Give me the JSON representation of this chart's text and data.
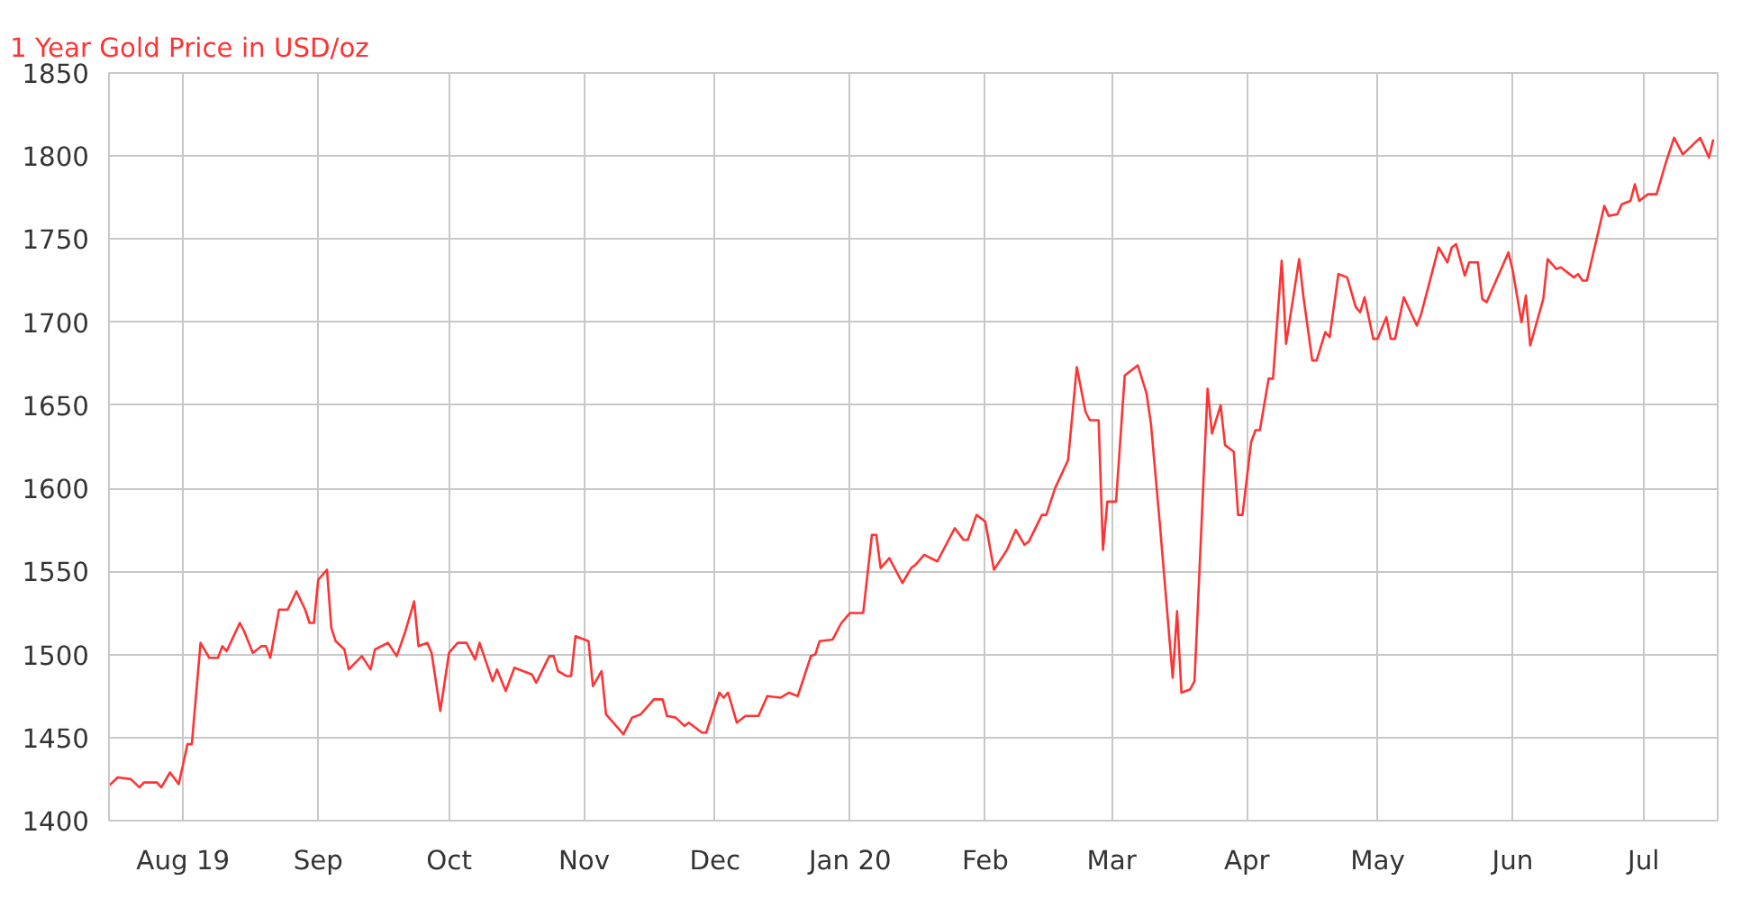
{
  "chart_data": {
    "type": "line",
    "title": "1 Year Gold Price in USD/oz",
    "xlim": [
      "2019-07-15",
      "2020-07-18"
    ],
    "xticks": [
      {
        "value": "2019-08-01",
        "label": "Aug 19"
      },
      {
        "value": "2019-09-01",
        "label": "Sep"
      },
      {
        "value": "2019-10-01",
        "label": "Oct"
      },
      {
        "value": "2019-11-01",
        "label": "Nov"
      },
      {
        "value": "2019-12-01",
        "label": "Dec"
      },
      {
        "value": "2020-01-01",
        "label": "Jan 20"
      },
      {
        "value": "2020-02-01",
        "label": "Feb"
      },
      {
        "value": "2020-03-01",
        "label": "Mar"
      },
      {
        "value": "2020-04-01",
        "label": "Apr"
      },
      {
        "value": "2020-05-01",
        "label": "May"
      },
      {
        "value": "2020-06-01",
        "label": "Jun"
      },
      {
        "value": "2020-07-01",
        "label": "Jul"
      }
    ],
    "ylim": [
      1400,
      1850
    ],
    "yticks": [
      1400,
      1450,
      1500,
      1550,
      1600,
      1650,
      1700,
      1750,
      1800,
      1850
    ],
    "grid": true,
    "marker": "none",
    "line_style": "solid",
    "x": [
      "2019-07-15",
      "2019-07-17",
      "2019-07-20",
      "2019-07-22",
      "2019-07-23",
      "2019-07-26",
      "2019-07-27",
      "2019-07-29",
      "2019-07-31",
      "2019-08-02",
      "2019-08-03",
      "2019-08-05",
      "2019-08-07",
      "2019-08-09",
      "2019-08-10",
      "2019-08-11",
      "2019-08-14",
      "2019-08-15",
      "2019-08-17",
      "2019-08-19",
      "2019-08-20",
      "2019-08-21",
      "2019-08-23",
      "2019-08-25",
      "2019-08-27",
      "2019-08-29",
      "2019-08-30",
      "2019-08-31",
      "2019-09-01",
      "2019-09-03",
      "2019-09-04",
      "2019-09-05",
      "2019-09-07",
      "2019-09-08",
      "2019-09-11",
      "2019-09-13",
      "2019-09-14",
      "2019-09-17",
      "2019-09-19",
      "2019-09-21",
      "2019-09-23",
      "2019-09-24",
      "2019-09-26",
      "2019-09-27",
      "2019-09-29",
      "2019-10-01",
      "2019-10-03",
      "2019-10-05",
      "2019-10-07",
      "2019-10-08",
      "2019-10-11",
      "2019-10-12",
      "2019-10-14",
      "2019-10-16",
      "2019-10-20",
      "2019-10-21",
      "2019-10-24",
      "2019-10-25",
      "2019-10-26",
      "2019-10-28",
      "2019-10-29",
      "2019-10-30",
      "2019-11-02",
      "2019-11-03",
      "2019-11-05",
      "2019-11-06",
      "2019-11-10",
      "2019-11-12",
      "2019-11-14",
      "2019-11-17",
      "2019-11-19",
      "2019-11-20",
      "2019-11-22",
      "2019-11-24",
      "2019-11-25",
      "2019-11-28",
      "2019-11-29",
      "2019-12-02",
      "2019-12-03",
      "2019-12-04",
      "2019-12-06",
      "2019-12-08",
      "2019-12-11",
      "2019-12-13",
      "2019-12-16",
      "2019-12-18",
      "2019-12-20",
      "2019-12-23",
      "2019-12-24",
      "2019-12-25",
      "2019-12-28",
      "2019-12-30",
      "2020-01-01",
      "2020-01-04",
      "2020-01-06",
      "2020-01-07",
      "2020-01-08",
      "2020-01-10",
      "2020-01-13",
      "2020-01-15",
      "2020-01-16",
      "2020-01-18",
      "2020-01-21",
      "2020-01-25",
      "2020-01-27",
      "2020-01-28",
      "2020-01-30",
      "2020-02-01",
      "2020-02-03",
      "2020-02-06",
      "2020-02-08",
      "2020-02-10",
      "2020-02-11",
      "2020-02-14",
      "2020-02-15",
      "2020-02-17",
      "2020-02-20",
      "2020-02-22",
      "2020-02-24",
      "2020-02-25",
      "2020-02-27",
      "2020-02-28",
      "2020-02-29",
      "2020-03-02",
      "2020-03-04",
      "2020-03-07",
      "2020-03-09",
      "2020-03-10",
      "2020-03-12",
      "2020-03-15",
      "2020-03-16",
      "2020-03-17",
      "2020-03-19",
      "2020-03-20",
      "2020-03-23",
      "2020-03-24",
      "2020-03-26",
      "2020-03-27",
      "2020-03-29",
      "2020-03-30",
      "2020-03-31",
      "2020-04-02",
      "2020-04-03",
      "2020-04-04",
      "2020-04-06",
      "2020-04-07",
      "2020-04-09",
      "2020-04-10",
      "2020-04-13",
      "2020-04-14",
      "2020-04-16",
      "2020-04-17",
      "2020-04-19",
      "2020-04-20",
      "2020-04-22",
      "2020-04-24",
      "2020-04-26",
      "2020-04-27",
      "2020-04-28",
      "2020-04-30",
      "2020-05-01",
      "2020-05-03",
      "2020-05-04",
      "2020-05-05",
      "2020-05-07",
      "2020-05-10",
      "2020-05-11",
      "2020-05-15",
      "2020-05-17",
      "2020-05-18",
      "2020-05-19",
      "2020-05-21",
      "2020-05-22",
      "2020-05-24",
      "2020-05-25",
      "2020-05-26",
      "2020-05-31",
      "2020-06-01",
      "2020-06-03",
      "2020-06-04",
      "2020-06-05",
      "2020-06-08",
      "2020-06-09",
      "2020-06-11",
      "2020-06-12",
      "2020-06-15",
      "2020-06-16",
      "2020-06-17",
      "2020-06-18",
      "2020-06-22",
      "2020-06-23",
      "2020-06-25",
      "2020-06-26",
      "2020-06-28",
      "2020-06-29",
      "2020-06-30",
      "2020-07-02",
      "2020-07-04",
      "2020-07-06",
      "2020-07-08",
      "2020-07-10",
      "2020-07-14",
      "2020-07-16",
      "2020-07-17"
    ],
    "series": [
      {
        "color": "#ff3333",
        "values": [
          1421,
          1426,
          1425,
          1420,
          1423,
          1423,
          1420,
          1429,
          1422,
          1446,
          1446,
          1507,
          1498,
          1498,
          1505,
          1502,
          1519,
          1514,
          1501,
          1505,
          1505,
          1498,
          1527,
          1527,
          1538,
          1527,
          1519,
          1519,
          1545,
          1551,
          1516,
          1508,
          1503,
          1491,
          1499,
          1491,
          1503,
          1507,
          1499,
          1514,
          1532,
          1505,
          1507,
          1501,
          1466,
          1501,
          1507,
          1507,
          1497,
          1507,
          1484,
          1491,
          1478,
          1492,
          1488,
          1483,
          1499,
          1499,
          1490,
          1487,
          1487,
          1511,
          1508,
          1481,
          1490,
          1464,
          1452,
          1462,
          1464,
          1473,
          1473,
          1463,
          1462,
          1457,
          1459,
          1453,
          1453,
          1477,
          1474,
          1477,
          1459,
          1463,
          1463,
          1475,
          1474,
          1477,
          1475,
          1499,
          1500,
          1508,
          1509,
          1519,
          1525,
          1525,
          1572,
          1572,
          1552,
          1558,
          1543,
          1552,
          1554,
          1560,
          1556,
          1576,
          1569,
          1569,
          1584,
          1580,
          1551,
          1563,
          1575,
          1566,
          1568,
          1584,
          1584,
          1600,
          1617,
          1673,
          1646,
          1641,
          1641,
          1563,
          1592,
          1592,
          1668,
          1674,
          1657,
          1639,
          1580,
          1486,
          1526,
          1477,
          1479,
          1484,
          1660,
          1633,
          1650,
          1626,
          1622,
          1584,
          1584,
          1628,
          1635,
          1635,
          1666,
          1666,
          1737,
          1687,
          1738,
          1715,
          1677,
          1677,
          1694,
          1691,
          1729,
          1727,
          1709,
          1706,
          1715,
          1690,
          1690,
          1703,
          1690,
          1690,
          1715,
          1698,
          1705,
          1745,
          1736,
          1745,
          1747,
          1728,
          1736,
          1736,
          1714,
          1712,
          1742,
          1731,
          1700,
          1716,
          1686,
          1714,
          1738,
          1732,
          1733,
          1727,
          1729,
          1725,
          1725,
          1770,
          1764,
          1765,
          1771,
          1773,
          1783,
          1773,
          1777,
          1777,
          1795,
          1811,
          1801,
          1811,
          1799,
          1810
        ]
      }
    ]
  }
}
